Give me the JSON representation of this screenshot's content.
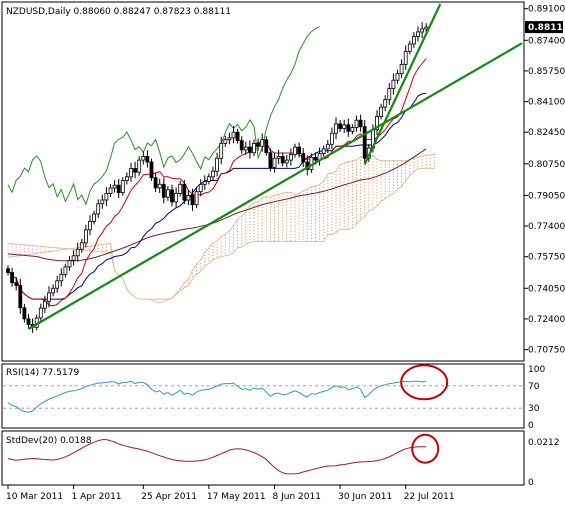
{
  "colors": {
    "background": "#ffffff",
    "frame": "#000000",
    "candle": "#000000",
    "close_marker": "#000000",
    "tenkan": "#d40000",
    "kijun": "#00008b",
    "chikou": "#2e8b2e",
    "cloud_bull": "#d98c56",
    "cloud_bear": "#d98cd9",
    "cloud_edge": "#e0b090",
    "ma_long": "#7a1f1f",
    "trendline": "#138a13",
    "rsi": "#3399cc",
    "rsi_level": "#999999",
    "stddev": "#b0103c",
    "annotation": "#cc0000"
  },
  "chart_data": [
    {
      "type": "candlestick",
      "title": "NZDUSD,Daily  0.88060 0.88247 0.87823 0.88111",
      "ylim": [
        0.7035,
        0.893
      ],
      "y_ticks": [
        "0.89100",
        "0.87400",
        "0.85750",
        "0.84100",
        "0.82450",
        "0.80750",
        "0.79050",
        "0.77400",
        "0.75750",
        "0.74050",
        "0.72400",
        "0.70750"
      ],
      "y_tick_values": [
        0.891,
        0.874,
        0.8575,
        0.841,
        0.8245,
        0.8075,
        0.7905,
        0.774,
        0.7575,
        0.7405,
        0.724,
        0.7075
      ],
      "current_price": "0.88111",
      "x_ticks": [
        "10 Mar 2011",
        "1 Apr 2011",
        "25 Apr 2011",
        "17 May 2011",
        "8 Jun 2011",
        "30 Jun 2011",
        "22 Jul 2011"
      ],
      "x_tick_index": [
        0,
        16,
        33,
        49,
        65,
        81,
        97
      ],
      "close": [
        0.749,
        0.7435,
        0.742,
        0.73,
        0.724,
        0.721,
        0.7195,
        0.7245,
        0.7298,
        0.7335,
        0.738,
        0.7405,
        0.7445,
        0.748,
        0.752,
        0.7555,
        0.758,
        0.7615,
        0.765,
        0.772,
        0.7765,
        0.7805,
        0.786,
        0.788,
        0.7915,
        0.7945,
        0.796,
        0.792,
        0.7985,
        0.8005,
        0.805,
        0.803,
        0.8095,
        0.8115,
        0.8085,
        0.8,
        0.7945,
        0.7965,
        0.7895,
        0.7935,
        0.787,
        0.7915,
        0.7965,
        0.788,
        0.7905,
        0.7855,
        0.7925,
        0.7965,
        0.798,
        0.8005,
        0.8035,
        0.8105,
        0.8185,
        0.8205,
        0.8215,
        0.8245,
        0.82,
        0.815,
        0.8165,
        0.8135,
        0.8185,
        0.817,
        0.8205,
        0.8135,
        0.8055,
        0.8105,
        0.8115,
        0.808,
        0.8095,
        0.8125,
        0.8165,
        0.813,
        0.8085,
        0.8045,
        0.811,
        0.8095,
        0.813,
        0.8155,
        0.818,
        0.824,
        0.829,
        0.8265,
        0.8285,
        0.825,
        0.827,
        0.831,
        0.8275,
        0.8105,
        0.816,
        0.826,
        0.833,
        0.838,
        0.842,
        0.848,
        0.8525,
        0.856,
        0.861,
        0.868,
        0.872,
        0.876,
        0.8785,
        0.8801,
        0.8811
      ],
      "rsi": {
        "label": "RSI(14) 77.5179",
        "ylim": [
          0,
          100
        ],
        "y_ticks": [
          "100",
          "70",
          "30",
          "0"
        ],
        "y_tick_values": [
          100,
          70,
          30,
          0
        ],
        "levels": [
          70,
          30
        ],
        "values": [
          40,
          35,
          33,
          27,
          24,
          23,
          25,
          32,
          38,
          42,
          46,
          49,
          52,
          55,
          58,
          60,
          61,
          63,
          65,
          69,
          71,
          73,
          75,
          75,
          76,
          77,
          77,
          73,
          76,
          76,
          78,
          74,
          76,
          76,
          72,
          64,
          59,
          61,
          55,
          58,
          53,
          57,
          62,
          55,
          57,
          53,
          59,
          62,
          63,
          64,
          66,
          70,
          73,
          74,
          74,
          75,
          69,
          64,
          65,
          62,
          66,
          64,
          66,
          59,
          51,
          56,
          57,
          54,
          55,
          58,
          61,
          58,
          53,
          50,
          56,
          55,
          58,
          60,
          62,
          67,
          70,
          67,
          68,
          63,
          65,
          68,
          64,
          49,
          54,
          62,
          67,
          70,
          72,
          74,
          75,
          76,
          77,
          78,
          77,
          78,
          78,
          77,
          78
        ]
      },
      "stddev": {
        "label": "StdDev(20) 0.0188",
        "ylim": [
          0,
          0.0245
        ],
        "y_ticks": [
          "0.0212",
          "0"
        ],
        "y_tick_values": [
          0.0212,
          0
        ],
        "values": [
          0.0125,
          0.012,
          0.0116,
          0.0118,
          0.0121,
          0.0123,
          0.0125,
          0.0124,
          0.0122,
          0.012,
          0.0118,
          0.0117,
          0.012,
          0.0126,
          0.0134,
          0.0144,
          0.0156,
          0.0168,
          0.018,
          0.0192,
          0.0203,
          0.0212,
          0.022,
          0.0226,
          0.0226,
          0.022,
          0.0213,
          0.0203,
          0.0196,
          0.019,
          0.0184,
          0.018,
          0.0176,
          0.017,
          0.0164,
          0.0156,
          0.0148,
          0.014,
          0.0133,
          0.0126,
          0.012,
          0.0115,
          0.0113,
          0.0111,
          0.011,
          0.011,
          0.0112,
          0.0114,
          0.0118,
          0.0124,
          0.0132,
          0.0141,
          0.015,
          0.016,
          0.017,
          0.0175,
          0.0177,
          0.0176,
          0.0171,
          0.0164,
          0.0157,
          0.0147,
          0.0135,
          0.012,
          0.0098,
          0.0078,
          0.006,
          0.0049,
          0.0044,
          0.0043,
          0.0044,
          0.0047,
          0.0053,
          0.0059,
          0.0065,
          0.007,
          0.0076,
          0.0081,
          0.0085,
          0.0086,
          0.0087,
          0.0091,
          0.0093,
          0.0097,
          0.0101,
          0.0105,
          0.0107,
          0.0108,
          0.0109,
          0.0111,
          0.0114,
          0.0118,
          0.0125,
          0.0134,
          0.0145,
          0.0157,
          0.0168,
          0.0177,
          0.0182,
          0.0185,
          0.0188,
          0.0188,
          0.0188
        ]
      }
    }
  ]
}
